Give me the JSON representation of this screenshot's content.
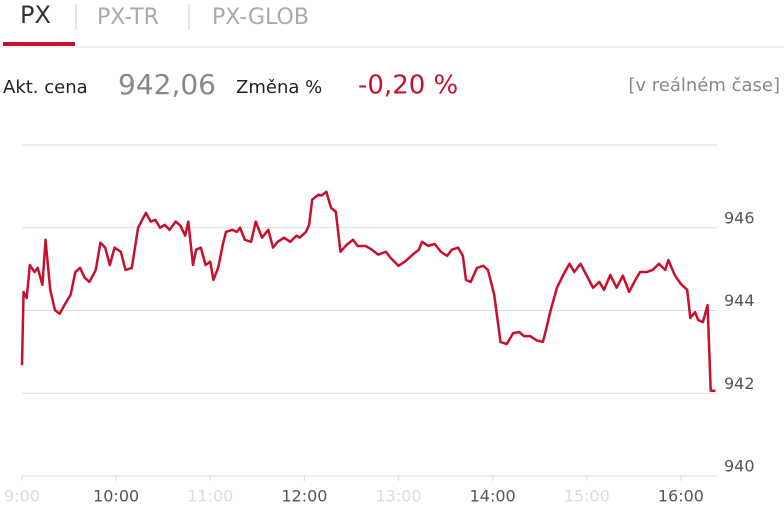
{
  "tabs": [
    "PX",
    "PX-TR",
    "PX-GLOB"
  ],
  "quote": {
    "price_label": "Akt. cena",
    "price": "942,06",
    "change_label": "Změna %",
    "change": "-0,20 %",
    "realtime": "[v reálném čase]"
  },
  "chart_data": {
    "type": "line",
    "color": "#c8102e",
    "x": [
      "9:00",
      "9:01",
      "9:03",
      "9:05",
      "9:08",
      "9:10",
      "9:13",
      "9:15",
      "9:18",
      "9:21",
      "9:24",
      "9:27",
      "9:31",
      "9:34",
      "9:37",
      "9:40",
      "9:43",
      "9:47",
      "9:50",
      "9:53",
      "9:56",
      "9:59",
      "10:03",
      "10:06",
      "10:10",
      "10:14",
      "10:19",
      "10:22",
      "10:25",
      "10:28",
      "10:31",
      "10:34",
      "10:38",
      "10:41",
      "10:44",
      "10:46",
      "10:49",
      "10:51",
      "10:54",
      "10:57",
      "11:00",
      "11:02",
      "11:05",
      "11:08",
      "11:10",
      "11:14",
      "11:17",
      "11:19",
      "11:22",
      "11:26",
      "11:29",
      "11:33",
      "11:37",
      "11:40",
      "11:43",
      "11:47",
      "11:51",
      "11:55",
      "11:57",
      "12:01",
      "12:03",
      "12:05",
      "12:09",
      "12:11",
      "12:14",
      "12:17",
      "12:20",
      "12:23",
      "12:27",
      "12:31",
      "12:34",
      "12:39",
      "12:43",
      "12:47",
      "12:52",
      "12:55",
      "13:00",
      "13:04",
      "13:09",
      "13:13",
      "13:15",
      "13:19",
      "13:23",
      "13:27",
      "13:31",
      "13:34",
      "13:38",
      "13:41",
      "13:43",
      "13:46",
      "13:50",
      "13:54",
      "13:57",
      "14:01",
      "14:05",
      "14:09",
      "14:13",
      "14:17",
      "14:20",
      "14:24",
      "14:28",
      "14:32",
      "14:34",
      "14:37",
      "14:41",
      "14:45",
      "14:49",
      "14:52",
      "14:56",
      "15:00",
      "15:04",
      "15:08",
      "15:11",
      "15:15",
      "15:19",
      "15:23",
      "15:27",
      "15:31",
      "15:34",
      "15:38",
      "15:42",
      "15:46",
      "15:50",
      "15:52",
      "15:56",
      "16:00",
      "16:04",
      "16:06",
      "16:09",
      "16:11",
      "16:14",
      "16:17",
      "16:19",
      "16:22"
    ],
    "values": [
      942.68,
      944.45,
      944.3,
      945.1,
      944.93,
      945.03,
      944.62,
      945.71,
      944.5,
      944.01,
      943.92,
      944.13,
      944.38,
      944.93,
      945.03,
      944.79,
      944.69,
      944.98,
      945.64,
      945.52,
      945.1,
      945.52,
      945.42,
      944.98,
      945.03,
      946.0,
      946.36,
      946.15,
      946.19,
      946.0,
      946.07,
      945.95,
      946.15,
      946.05,
      945.81,
      946.15,
      945.1,
      945.47,
      945.52,
      945.1,
      945.18,
      944.74,
      945.03,
      945.59,
      945.9,
      945.95,
      945.9,
      946.0,
      945.71,
      945.66,
      946.15,
      945.76,
      945.95,
      945.52,
      945.66,
      945.76,
      945.66,
      945.81,
      945.76,
      945.9,
      946.07,
      946.68,
      946.8,
      946.78,
      946.87,
      946.48,
      946.39,
      945.42,
      945.59,
      945.71,
      945.56,
      945.56,
      945.47,
      945.35,
      945.42,
      945.27,
      945.08,
      945.18,
      945.35,
      945.47,
      945.66,
      945.56,
      945.61,
      945.42,
      945.32,
      945.47,
      945.52,
      945.32,
      944.74,
      944.69,
      945.03,
      945.08,
      944.98,
      944.38,
      943.24,
      943.19,
      943.45,
      943.48,
      943.38,
      943.38,
      943.28,
      943.24,
      943.53,
      944.01,
      944.55,
      944.86,
      945.13,
      944.93,
      945.13,
      944.84,
      944.55,
      944.69,
      944.5,
      944.86,
      944.55,
      944.84,
      944.45,
      944.74,
      944.93,
      944.93,
      944.98,
      945.13,
      944.98,
      945.22,
      944.86,
      944.64,
      944.5,
      943.82,
      943.96,
      943.77,
      943.72,
      944.13,
      942.06,
      942.06
    ],
    "xlim": [
      "9:00",
      "16:23"
    ],
    "xticks": [
      "9:00",
      "10:00",
      "11:00",
      "12:00",
      "13:00",
      "14:00",
      "15:00",
      "16:00"
    ],
    "ylim": [
      940,
      948
    ],
    "yticks": [
      940,
      942,
      944,
      946
    ],
    "grid": true
  }
}
